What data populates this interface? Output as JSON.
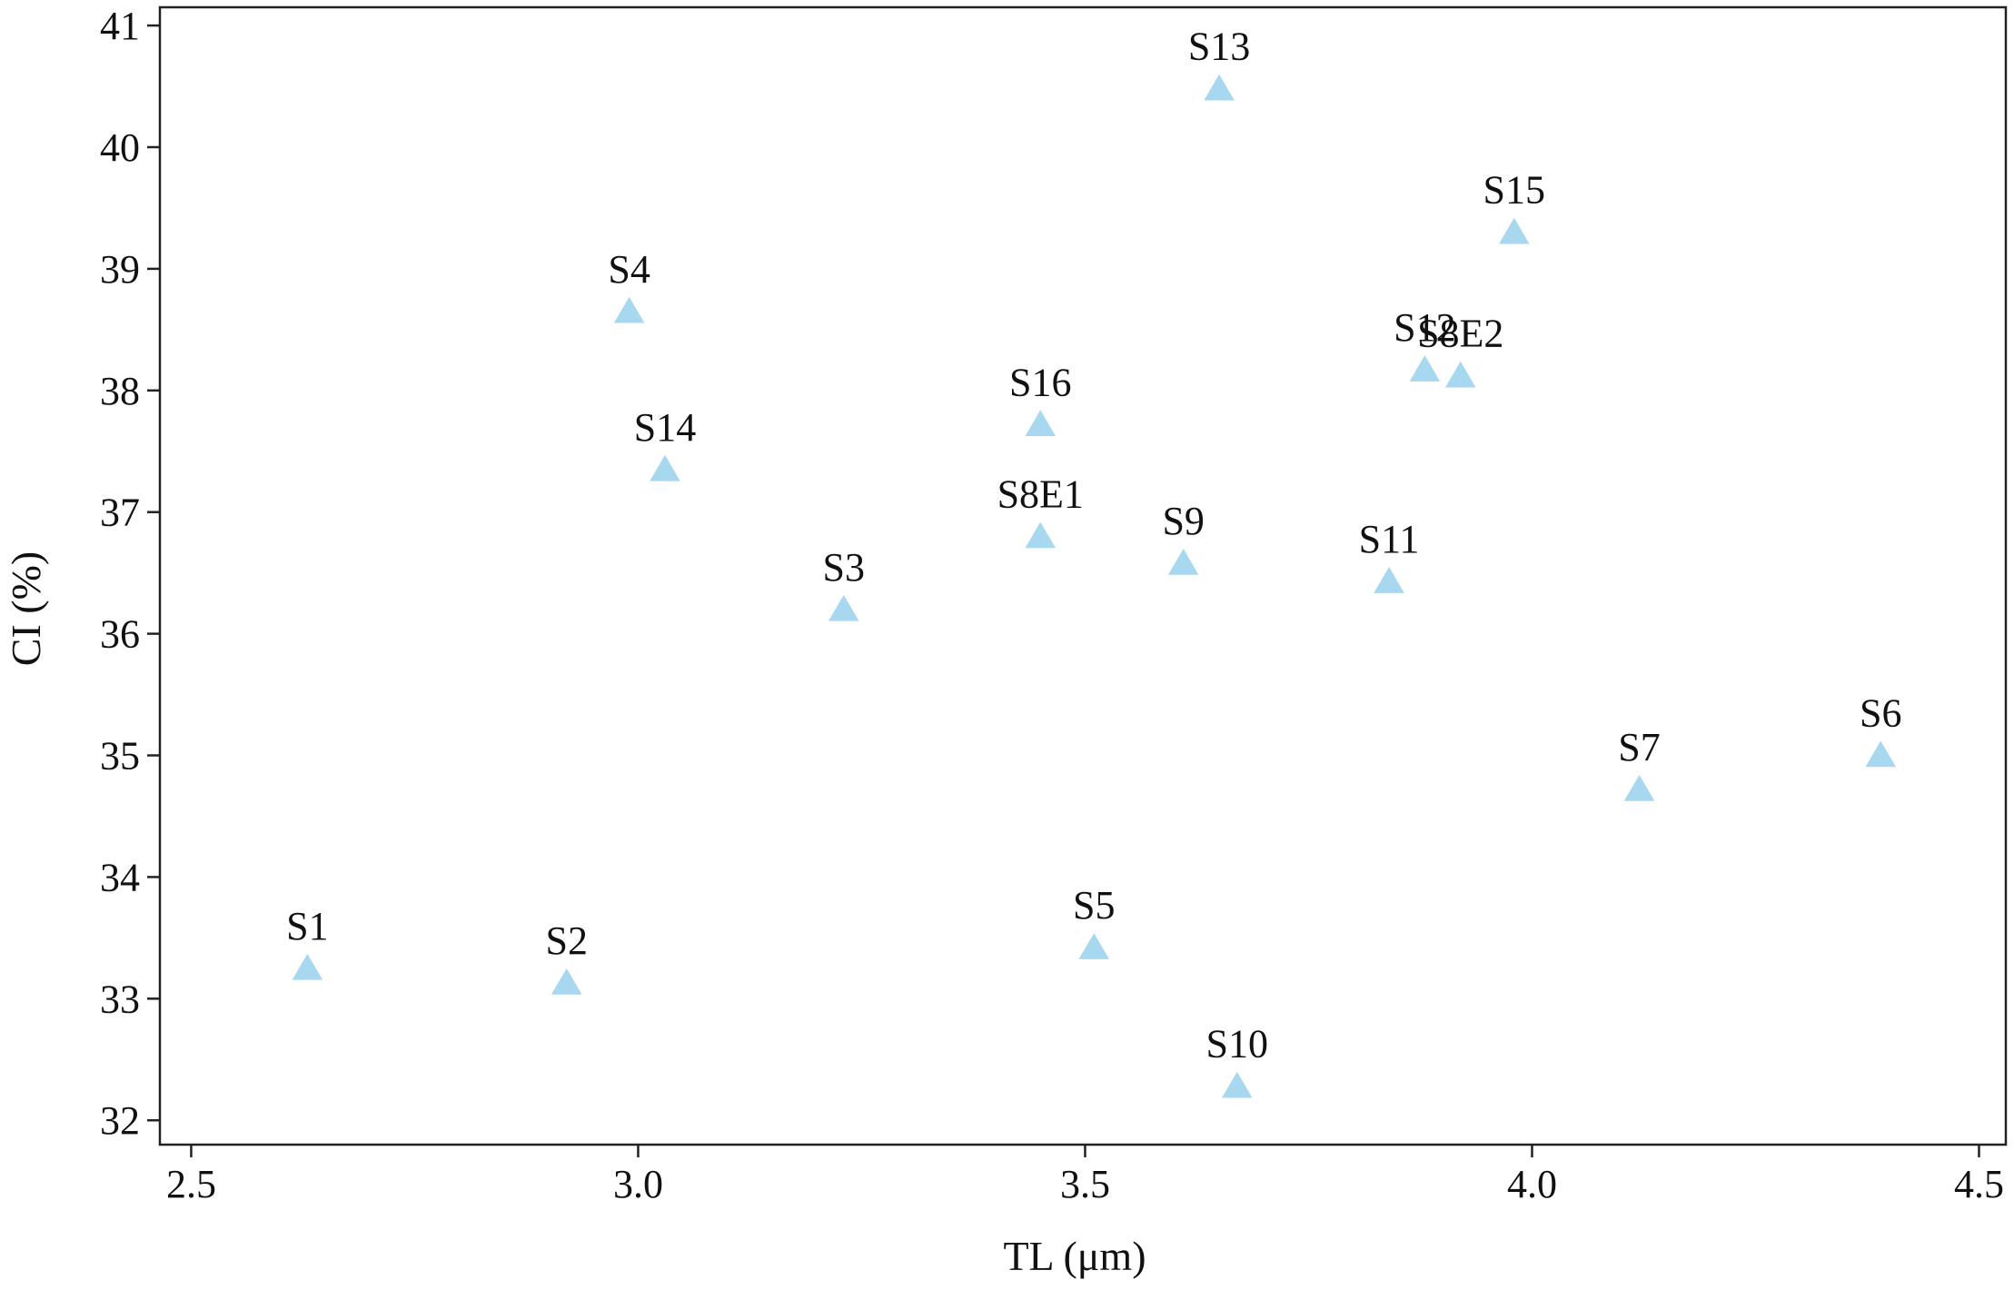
{
  "chart_data": {
    "type": "scatter",
    "title": "",
    "xlabel": "TL (μm)",
    "ylabel": "CI (%)",
    "xlim": [
      2.465,
      4.53
    ],
    "ylim": [
      31.8,
      41.15
    ],
    "x_ticks": [
      2.5,
      3.0,
      3.5,
      4.0,
      4.5
    ],
    "x_tick_labels": [
      "2.5",
      "3.0",
      "3.5",
      "4.0",
      "4.5"
    ],
    "y_ticks": [
      32,
      33,
      34,
      35,
      36,
      37,
      38,
      39,
      40,
      41
    ],
    "y_tick_labels": [
      "32",
      "33",
      "34",
      "35",
      "36",
      "37",
      "38",
      "39",
      "40",
      "41"
    ],
    "grid": false,
    "marker": "triangle",
    "marker_color": "#a8d8f0",
    "points": [
      {
        "label": "S1",
        "x": 2.63,
        "y": 33.25
      },
      {
        "label": "S2",
        "x": 2.92,
        "y": 33.13
      },
      {
        "label": "S3",
        "x": 3.23,
        "y": 36.2
      },
      {
        "label": "S4",
        "x": 2.99,
        "y": 38.65
      },
      {
        "label": "S5",
        "x": 3.51,
        "y": 33.42
      },
      {
        "label": "S6",
        "x": 4.39,
        "y": 35.0
      },
      {
        "label": "S7",
        "x": 4.12,
        "y": 34.72
      },
      {
        "label": "S8E1",
        "x": 3.45,
        "y": 36.8
      },
      {
        "label": "S8E2",
        "x": 3.92,
        "y": 38.12
      },
      {
        "label": "S9",
        "x": 3.61,
        "y": 36.58
      },
      {
        "label": "S10",
        "x": 3.67,
        "y": 32.28
      },
      {
        "label": "S11",
        "x": 3.84,
        "y": 36.43
      },
      {
        "label": "S12",
        "x": 3.88,
        "y": 38.17
      },
      {
        "label": "S13",
        "x": 3.65,
        "y": 40.48
      },
      {
        "label": "S14",
        "x": 3.03,
        "y": 37.35
      },
      {
        "label": "S15",
        "x": 3.98,
        "y": 39.3
      },
      {
        "label": "S16",
        "x": 3.45,
        "y": 37.72
      }
    ]
  }
}
